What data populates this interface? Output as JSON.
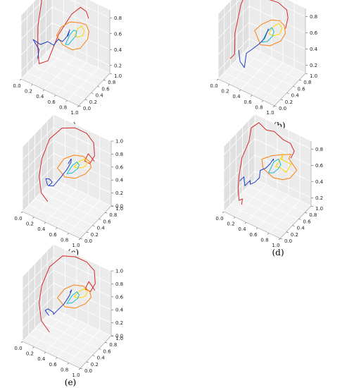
{
  "chart_data": [
    {
      "type": "line",
      "panel_label": "(a)",
      "x_ticks": [
        "0.0",
        "0.2",
        "0.4",
        "0.6",
        "0.8",
        "1.0"
      ],
      "y_ticks": [
        "0.0",
        "0.2",
        "0.4",
        "0.6",
        "0.8",
        "1.0"
      ],
      "z_ticks": [
        "0.2",
        "0.4",
        "0.6",
        "0.8"
      ],
      "xlim": [
        0,
        1
      ],
      "ylim": [
        0,
        1
      ],
      "zlim": [
        0.1,
        0.9
      ],
      "grid": true,
      "series": [
        {
          "color": "#d62728",
          "x": [
            0.05,
            0.02,
            0.0,
            0.05,
            0.1,
            0.15,
            0.25,
            0.35,
            0.5,
            0.6,
            0.7,
            0.75
          ],
          "y": [
            0.95,
            0.85,
            0.7,
            0.45,
            0.35,
            0.3,
            0.4,
            0.55,
            0.7,
            0.8,
            0.8,
            0.78
          ],
          "z": [
            0.85,
            0.88,
            0.9,
            0.6,
            0.4,
            0.22,
            0.25,
            0.55,
            0.8,
            0.88,
            0.86,
            0.8
          ]
        },
        {
          "color": "#ff7f0e",
          "x": [
            0.4,
            0.45,
            0.55,
            0.7,
            0.78,
            0.8,
            0.75,
            0.65,
            0.55,
            0.45,
            0.4
          ],
          "y": [
            0.4,
            0.45,
            0.55,
            0.6,
            0.65,
            0.7,
            0.75,
            0.7,
            0.62,
            0.5,
            0.4
          ],
          "z": [
            0.62,
            0.72,
            0.78,
            0.8,
            0.78,
            0.68,
            0.55,
            0.42,
            0.4,
            0.48,
            0.62
          ]
        },
        {
          "color": "#ffd700",
          "x": [
            0.6,
            0.65,
            0.7,
            0.72,
            0.68,
            0.62,
            0.6
          ],
          "y": [
            0.6,
            0.62,
            0.65,
            0.7,
            0.72,
            0.68,
            0.6
          ],
          "z": [
            0.6,
            0.7,
            0.74,
            0.66,
            0.58,
            0.56,
            0.6
          ]
        },
        {
          "color": "#17becf",
          "x": [
            0.5,
            0.55,
            0.6,
            0.63,
            0.6,
            0.55,
            0.52,
            0.5
          ],
          "y": [
            0.5,
            0.55,
            0.58,
            0.62,
            0.65,
            0.62,
            0.56,
            0.5
          ],
          "z": [
            0.5,
            0.62,
            0.68,
            0.66,
            0.58,
            0.52,
            0.48,
            0.5
          ]
        },
        {
          "color": "#1f3fbf",
          "x": [
            0.1,
            0.15,
            0.1,
            0.2,
            0.3,
            0.35,
            0.4,
            0.45,
            0.5,
            0.52,
            0.48
          ],
          "y": [
            0.35,
            0.3,
            0.2,
            0.25,
            0.3,
            0.4,
            0.45,
            0.5,
            0.55,
            0.6,
            0.62
          ],
          "z": [
            0.25,
            0.4,
            0.55,
            0.5,
            0.55,
            0.48,
            0.55,
            0.52,
            0.58,
            0.65,
            0.55
          ]
        }
      ]
    },
    {
      "type": "line",
      "panel_label": "(b)",
      "x_ticks": [
        "0.0",
        "0.2",
        "0.4",
        "0.6",
        "0.8",
        "1.0"
      ],
      "y_ticks": [
        "0.0",
        "0.2",
        "0.4",
        "0.6",
        "0.8",
        "1.0"
      ],
      "z_ticks": [
        "0.2",
        "0.4",
        "0.6",
        "0.8"
      ],
      "xlim": [
        0,
        1
      ],
      "ylim": [
        0,
        1
      ],
      "zlim": [
        0.1,
        0.9
      ],
      "grid": true,
      "series": [
        {
          "color": "#d62728",
          "x": [
            0.05,
            0.1,
            0.05,
            0.02,
            0.05,
            0.2,
            0.4,
            0.6,
            0.75,
            0.8,
            0.8
          ],
          "y": [
            0.3,
            0.35,
            0.45,
            0.7,
            0.95,
            0.9,
            0.85,
            0.85,
            0.85,
            0.8,
            0.72
          ],
          "z": [
            0.25,
            0.3,
            0.5,
            0.75,
            0.9,
            0.9,
            0.88,
            0.9,
            0.86,
            0.8,
            0.7
          ]
        },
        {
          "color": "#ff7f0e",
          "x": [
            0.4,
            0.5,
            0.62,
            0.75,
            0.8,
            0.78,
            0.7,
            0.55,
            0.45,
            0.4
          ],
          "y": [
            0.45,
            0.5,
            0.58,
            0.62,
            0.68,
            0.75,
            0.75,
            0.68,
            0.55,
            0.45
          ],
          "z": [
            0.65,
            0.74,
            0.8,
            0.82,
            0.75,
            0.62,
            0.5,
            0.42,
            0.45,
            0.65
          ]
        },
        {
          "color": "#ffd700",
          "x": [
            0.58,
            0.65,
            0.72,
            0.74,
            0.68,
            0.6,
            0.58
          ],
          "y": [
            0.58,
            0.62,
            0.66,
            0.72,
            0.74,
            0.68,
            0.58
          ],
          "z": [
            0.62,
            0.72,
            0.76,
            0.68,
            0.58,
            0.56,
            0.62
          ]
        },
        {
          "color": "#17becf",
          "x": [
            0.5,
            0.56,
            0.62,
            0.64,
            0.6,
            0.54,
            0.5
          ],
          "y": [
            0.5,
            0.55,
            0.6,
            0.64,
            0.66,
            0.6,
            0.5
          ],
          "z": [
            0.52,
            0.64,
            0.7,
            0.64,
            0.56,
            0.5,
            0.52
          ]
        },
        {
          "color": "#1f3fbf",
          "x": [
            0.2,
            0.25,
            0.3,
            0.28,
            0.35,
            0.45,
            0.52,
            0.55,
            0.52
          ],
          "y": [
            0.3,
            0.25,
            0.3,
            0.4,
            0.45,
            0.5,
            0.55,
            0.62,
            0.65
          ],
          "z": [
            0.4,
            0.3,
            0.22,
            0.35,
            0.4,
            0.48,
            0.55,
            0.65,
            0.6
          ]
        }
      ]
    },
    {
      "type": "line",
      "panel_label": "(c)",
      "x_ticks": [
        "0.0",
        "0.2",
        "0.4",
        "0.6",
        "0.8",
        "1.0"
      ],
      "y_ticks": [
        "0.0",
        "0.2",
        "0.4",
        "0.6",
        "0.8",
        "1.0"
      ],
      "z_ticks": [
        "0.0",
        "0.2",
        "0.4",
        "0.6",
        "0.8",
        "1.0"
      ],
      "xlim": [
        0,
        1
      ],
      "ylim": [
        0,
        1
      ],
      "zlim": [
        0,
        1
      ],
      "grid": true,
      "series": [
        {
          "color": "#d62728",
          "x": [
            0.22,
            0.1,
            0.02,
            0.0,
            0.05,
            0.2,
            0.4,
            0.6,
            0.75,
            0.82,
            0.78,
            0.7,
            0.72,
            0.8
          ],
          "y": [
            0.4,
            0.42,
            0.5,
            0.62,
            0.78,
            0.9,
            0.95,
            0.95,
            0.9,
            0.8,
            0.72,
            0.7,
            0.78,
            0.82
          ],
          "z": [
            0.05,
            0.12,
            0.3,
            0.5,
            0.75,
            0.92,
            0.98,
            0.98,
            0.92,
            0.8,
            0.7,
            0.72,
            0.8,
            0.7
          ]
        },
        {
          "color": "#ff7f0e",
          "x": [
            0.38,
            0.45,
            0.58,
            0.72,
            0.8,
            0.78,
            0.68,
            0.55,
            0.44,
            0.38
          ],
          "y": [
            0.42,
            0.5,
            0.58,
            0.62,
            0.68,
            0.76,
            0.76,
            0.68,
            0.55,
            0.42
          ],
          "z": [
            0.62,
            0.75,
            0.82,
            0.84,
            0.76,
            0.62,
            0.48,
            0.4,
            0.44,
            0.62
          ]
        },
        {
          "color": "#ffd700",
          "x": [
            0.58,
            0.66,
            0.72,
            0.74,
            0.68,
            0.6,
            0.58
          ],
          "y": [
            0.58,
            0.62,
            0.66,
            0.72,
            0.74,
            0.68,
            0.58
          ],
          "z": [
            0.64,
            0.74,
            0.78,
            0.7,
            0.6,
            0.58,
            0.64
          ]
        },
        {
          "color": "#17becf",
          "x": [
            0.5,
            0.56,
            0.62,
            0.64,
            0.6,
            0.54,
            0.5
          ],
          "y": [
            0.5,
            0.56,
            0.6,
            0.64,
            0.66,
            0.6,
            0.5
          ],
          "z": [
            0.54,
            0.66,
            0.72,
            0.66,
            0.58,
            0.52,
            0.54
          ]
        },
        {
          "color": "#1f3fbf",
          "x": [
            0.22,
            0.2,
            0.28,
            0.3,
            0.26,
            0.22,
            0.3,
            0.4,
            0.48,
            0.52,
            0.5,
            0.46
          ],
          "y": [
            0.4,
            0.38,
            0.34,
            0.4,
            0.44,
            0.42,
            0.44,
            0.5,
            0.55,
            0.6,
            0.64,
            0.62
          ],
          "z": [
            0.3,
            0.4,
            0.45,
            0.38,
            0.32,
            0.28,
            0.3,
            0.45,
            0.58,
            0.68,
            0.7,
            0.62
          ]
        }
      ]
    },
    {
      "type": "line",
      "panel_label": "(d)",
      "x_ticks": [
        "0.0",
        "0.2",
        "0.4",
        "0.6",
        "0.8",
        "1.0"
      ],
      "y_ticks": [
        "0.0",
        "0.2",
        "0.4",
        "0.6",
        "0.8",
        "1.0"
      ],
      "z_ticks": [
        "0.2",
        "0.4",
        "0.6",
        "0.8"
      ],
      "xlim": [
        0,
        1
      ],
      "ylim": [
        0,
        1
      ],
      "zlim": [
        0.1,
        0.9
      ],
      "grid": true,
      "series": [
        {
          "color": "#d62728",
          "x": [
            0.18,
            0.22,
            0.15,
            0.1,
            0.05,
            0.02,
            0.06,
            0.02,
            0.1,
            0.25,
            0.4,
            0.55,
            0.7,
            0.8,
            0.78
          ],
          "y": [
            0.25,
            0.2,
            0.22,
            0.28,
            0.4,
            0.55,
            0.7,
            0.85,
            0.95,
            0.92,
            0.9,
            0.92,
            0.88,
            0.82,
            0.75
          ],
          "z": [
            0.15,
            0.25,
            0.2,
            0.3,
            0.4,
            0.55,
            0.7,
            0.8,
            0.85,
            0.82,
            0.86,
            0.8,
            0.82,
            0.78,
            0.72
          ]
        },
        {
          "color": "#ff7f0e",
          "x": [
            0.45,
            0.4,
            0.55,
            0.7,
            0.85,
            0.78,
            0.9,
            0.75,
            0.65,
            0.55,
            0.45
          ],
          "y": [
            0.45,
            0.5,
            0.55,
            0.58,
            0.62,
            0.68,
            0.72,
            0.78,
            0.72,
            0.6,
            0.45
          ],
          "z": [
            0.6,
            0.68,
            0.75,
            0.8,
            0.84,
            0.74,
            0.62,
            0.45,
            0.42,
            0.46,
            0.6
          ]
        },
        {
          "color": "#ffd700",
          "x": [
            0.6,
            0.72,
            0.66,
            0.8,
            0.7,
            0.62,
            0.6
          ],
          "y": [
            0.58,
            0.62,
            0.66,
            0.72,
            0.74,
            0.68,
            0.58
          ],
          "z": [
            0.62,
            0.8,
            0.7,
            0.66,
            0.52,
            0.58,
            0.62
          ]
        },
        {
          "color": "#17becf",
          "x": [
            0.52,
            0.58,
            0.64,
            0.66,
            0.6,
            0.55,
            0.52
          ],
          "y": [
            0.5,
            0.56,
            0.6,
            0.64,
            0.66,
            0.6,
            0.5
          ],
          "z": [
            0.55,
            0.68,
            0.72,
            0.64,
            0.56,
            0.52,
            0.55
          ]
        },
        {
          "color": "#1f3fbf",
          "x": [
            0.12,
            0.18,
            0.22,
            0.28,
            0.25,
            0.32,
            0.38,
            0.36,
            0.44,
            0.5,
            0.54,
            0.52
          ],
          "y": [
            0.3,
            0.32,
            0.28,
            0.34,
            0.4,
            0.42,
            0.46,
            0.52,
            0.55,
            0.58,
            0.62,
            0.66
          ],
          "z": [
            0.4,
            0.46,
            0.38,
            0.44,
            0.36,
            0.4,
            0.46,
            0.52,
            0.56,
            0.62,
            0.68,
            0.64
          ]
        }
      ]
    },
    {
      "type": "line",
      "panel_label": "(e)",
      "x_ticks": [
        "0.0",
        "0.2",
        "0.4",
        "0.6",
        "0.8",
        "1.0"
      ],
      "y_ticks": [
        "0.0",
        "0.2",
        "0.4",
        "0.6",
        "0.8",
        "1.0"
      ],
      "z_ticks": [
        "0.0",
        "0.2",
        "0.4",
        "0.6",
        "0.8",
        "1.0"
      ],
      "xlim": [
        0,
        1
      ],
      "ylim": [
        0,
        1
      ],
      "zlim": [
        0,
        1
      ],
      "grid": true,
      "series": [
        {
          "color": "#d62728",
          "x": [
            0.25,
            0.1,
            0.02,
            0.0,
            0.05,
            0.2,
            0.4,
            0.6,
            0.75,
            0.82,
            0.78,
            0.7,
            0.72,
            0.8
          ],
          "y": [
            0.4,
            0.42,
            0.5,
            0.62,
            0.78,
            0.92,
            0.96,
            0.96,
            0.92,
            0.82,
            0.74,
            0.72,
            0.8,
            0.84
          ],
          "z": [
            0.05,
            0.15,
            0.35,
            0.55,
            0.78,
            0.94,
            0.99,
            0.99,
            0.94,
            0.82,
            0.72,
            0.74,
            0.82,
            0.7
          ]
        },
        {
          "color": "#ff7f0e",
          "x": [
            0.38,
            0.46,
            0.58,
            0.72,
            0.8,
            0.78,
            0.68,
            0.55,
            0.44,
            0.38
          ],
          "y": [
            0.42,
            0.5,
            0.58,
            0.62,
            0.68,
            0.76,
            0.76,
            0.68,
            0.55,
            0.42
          ],
          "z": [
            0.62,
            0.75,
            0.82,
            0.84,
            0.76,
            0.62,
            0.48,
            0.4,
            0.44,
            0.62
          ]
        },
        {
          "color": "#ffd700",
          "x": [
            0.58,
            0.66,
            0.72,
            0.74,
            0.68,
            0.6,
            0.58
          ],
          "y": [
            0.58,
            0.62,
            0.66,
            0.72,
            0.74,
            0.68,
            0.58
          ],
          "z": [
            0.64,
            0.74,
            0.78,
            0.7,
            0.6,
            0.58,
            0.64
          ]
        },
        {
          "color": "#17becf",
          "x": [
            0.5,
            0.56,
            0.62,
            0.64,
            0.6,
            0.54,
            0.5
          ],
          "y": [
            0.5,
            0.56,
            0.6,
            0.64,
            0.66,
            0.6,
            0.5
          ],
          "z": [
            0.54,
            0.66,
            0.72,
            0.66,
            0.58,
            0.52,
            0.54
          ]
        },
        {
          "color": "#1f3fbf",
          "x": [
            0.24,
            0.2,
            0.26,
            0.32,
            0.3,
            0.36,
            0.44,
            0.5,
            0.52,
            0.48
          ],
          "y": [
            0.4,
            0.36,
            0.34,
            0.4,
            0.44,
            0.48,
            0.52,
            0.58,
            0.62,
            0.64
          ],
          "z": [
            0.3,
            0.38,
            0.44,
            0.38,
            0.32,
            0.4,
            0.5,
            0.62,
            0.7,
            0.64
          ]
        }
      ]
    }
  ]
}
